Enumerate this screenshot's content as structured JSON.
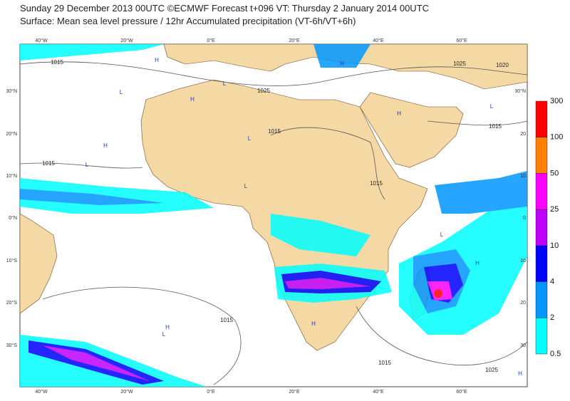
{
  "header": {
    "line1": "Sunday 29 December 2013 00UTC ©ECMWF Forecast t+096 VT: Thursday 2 January 2014 00UTC",
    "line2": "Surface: Mean sea level pressure / 12hr Accumulated precipitation (VT-6h/VT+6h)"
  },
  "map": {
    "lon_labels": [
      "40°W",
      "20°W",
      "0°E",
      "20°E",
      "40°E",
      "60°E"
    ],
    "lat_labels": [
      "30°N",
      "20°N",
      "10°N",
      "0°N",
      "10°S",
      "20°S",
      "30°S"
    ],
    "right_lat_labels": [
      "30°N",
      "20",
      "10",
      "0",
      "10",
      "20",
      "30"
    ],
    "isobar_labels": [
      "1015",
      "1025",
      "1015",
      "1015",
      "1015",
      "1015",
      "1020",
      "1025",
      "1015",
      "1015",
      "1025"
    ],
    "pressure_centers": [
      "H",
      "L",
      "H",
      "L",
      "H",
      "L",
      "L",
      "H",
      "L",
      "H",
      "L",
      "H",
      "L",
      "H",
      "H",
      "L",
      "H"
    ]
  },
  "legend": {
    "levels": [
      "300",
      "100",
      "50",
      "25",
      "10",
      "4",
      "2",
      "0.5"
    ],
    "colors": [
      "#ff0000",
      "#ff8000",
      "#ff00ff",
      "#c000ff",
      "#0000ff",
      "#0096ff",
      "#00ffff"
    ]
  }
}
